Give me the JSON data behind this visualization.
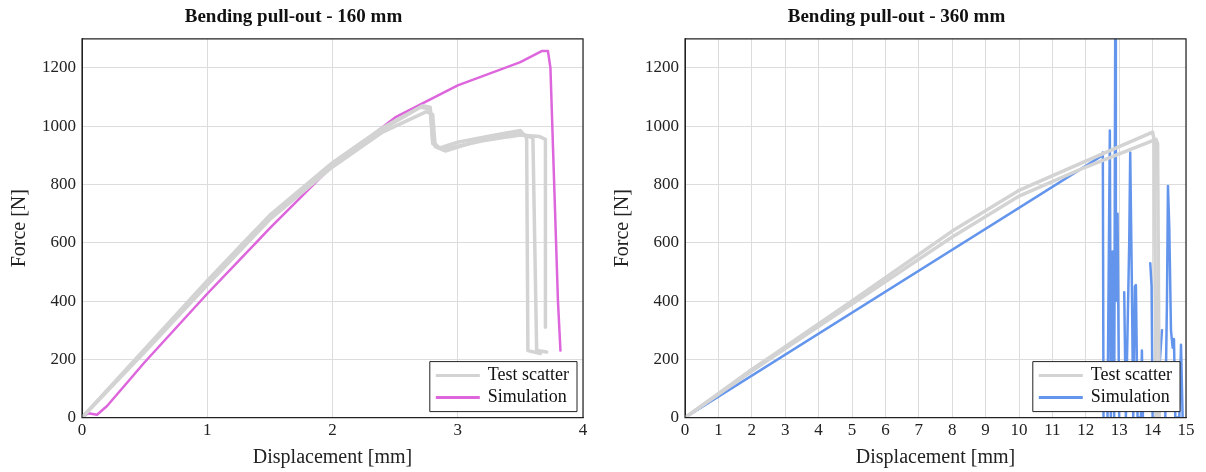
{
  "chart_data": [
    {
      "type": "line",
      "title": "Bending pull-out - 160 mm",
      "xlabel": "Displacement [mm]",
      "ylabel": "Force [N]",
      "xlim": [
        0,
        4
      ],
      "xticks": [
        0,
        1,
        2,
        3,
        4
      ],
      "ylim": [
        0,
        1300
      ],
      "yticks": [
        0,
        200,
        400,
        600,
        800,
        1000,
        1200
      ],
      "grid": true,
      "legend": "bottom right",
      "marker": "none",
      "line_style": "solid",
      "series": [
        {
          "name": "Test scatter",
          "color": "#d3d3d3",
          "x": [
            0,
            0.5,
            1,
            1.5,
            2,
            2.4,
            2.7,
            2.78,
            2.8,
            2.85,
            3,
            3.3,
            3.5,
            3.55,
            3.56,
            3.66
          ],
          "values": [
            0,
            230,
            465,
            690,
            870,
            990,
            1065,
            1060,
            950,
            925,
            945,
            970,
            985,
            960,
            230,
            220
          ]
        },
        {
          "color": "#d3d3d3",
          "x": [
            0,
            0.5,
            1,
            1.5,
            2,
            2.4,
            2.75,
            2.8,
            2.82,
            2.9,
            3.2,
            3.5,
            3.6,
            3.63,
            3.71
          ],
          "values": [
            0,
            225,
            455,
            680,
            860,
            980,
            1050,
            1040,
            930,
            915,
            955,
            975,
            960,
            230,
            225
          ]
        },
        {
          "color": "#d3d3d3",
          "x": [
            0,
            0.5,
            1,
            1.5,
            2,
            2.4,
            2.72,
            2.78,
            2.8,
            2.88,
            3.2,
            3.5,
            3.65,
            3.7,
            3.7
          ],
          "values": [
            0,
            235,
            470,
            695,
            875,
            995,
            1070,
            1065,
            940,
            920,
            950,
            970,
            965,
            955,
            310
          ]
        },
        {
          "name": "Simulation",
          "color": "#dd66dd",
          "x": [
            0,
            0.05,
            0.12,
            0.2,
            0.5,
            1,
            1.5,
            2,
            2.5,
            3,
            3.5,
            3.67,
            3.72,
            3.74,
            3.8,
            3.82
          ],
          "values": [
            0,
            15,
            10,
            40,
            190,
            425,
            650,
            865,
            1030,
            1140,
            1220,
            1258,
            1258,
            1200,
            400,
            230
          ]
        }
      ]
    },
    {
      "type": "line",
      "title": "Bending pull-out - 360 mm",
      "xlabel": "Displacement [mm]",
      "ylabel": "Force [N]",
      "xlim": [
        0,
        15
      ],
      "xticks": [
        0,
        1,
        2,
        3,
        4,
        5,
        6,
        7,
        8,
        9,
        10,
        11,
        12,
        13,
        14,
        15
      ],
      "ylim": [
        0,
        1300
      ],
      "yticks": [
        0,
        200,
        400,
        600,
        800,
        1000,
        1200
      ],
      "grid": true,
      "legend": "bottom right",
      "marker": "none",
      "line_style": "solid",
      "series": [
        {
          "name": "Test scatter",
          "color": "#d3d3d3",
          "x": [
            0,
            2,
            5,
            8,
            10,
            12,
            14,
            14.05,
            14.1
          ],
          "values": [
            0,
            165,
            400,
            640,
            780,
            880,
            980,
            950,
            0
          ]
        },
        {
          "color": "#d3d3d3",
          "x": [
            0,
            2,
            5,
            8,
            10,
            12,
            14.1,
            14.15,
            14.2
          ],
          "values": [
            0,
            160,
            390,
            620,
            760,
            860,
            955,
            940,
            0
          ]
        },
        {
          "name": "Simulation",
          "color": "#6495ed",
          "x": [
            0,
            12.5,
            12.51,
            12.53,
            12.6,
            12.65,
            12.72,
            12.75,
            12.8,
            12.85,
            12.88,
            12.9,
            12.95,
            13.0,
            13.1,
            13.15,
            13.2,
            13.3,
            13.33,
            13.38,
            13.42,
            13.47,
            13.5,
            13.55,
            13.65,
            13.68,
            13.71,
            13.85,
            13.93,
            13.97,
            14.0,
            14.1,
            14.28,
            14.32,
            14.38,
            14.43,
            14.46,
            14.5,
            14.55,
            14.6,
            14.64,
            14.68,
            14.8,
            14.85,
            14.9
          ],
          "values": [
            0,
            900,
            910,
            0,
            null,
            0,
            985,
            0,
            570,
            0,
            1300,
            400,
            700,
            0,
            null,
            430,
            0,
            600,
            910,
            450,
            0,
            450,
            455,
            0,
            0,
            230,
            0,
            null,
            530,
            450,
            0,
            0,
            300,
            null,
            0,
            400,
            795,
            650,
            300,
            240,
            270,
            0,
            0,
            250,
            0
          ]
        }
      ]
    }
  ]
}
